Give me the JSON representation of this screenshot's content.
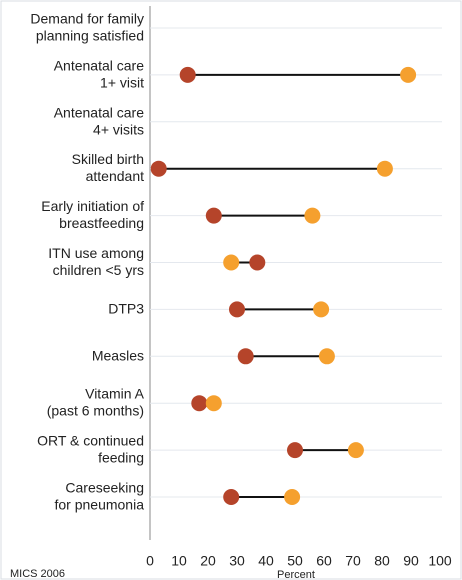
{
  "chart_data": {
    "type": "dumbbell",
    "categories": [
      "Demand for family\nplanning satisfied",
      "Antenatal care\n1+ visit",
      "Antenatal care\n4+ visits",
      "Skilled birth\nattendant",
      "Early initiation of\nbreastfeeding",
      "ITN use among\nchildren <5 yrs",
      "DTP3",
      "Measles",
      "Vitamin A\n(past 6 months)",
      "ORT & continued\nfeeding",
      "Careseeking\nfor pneumonia"
    ],
    "series": [
      {
        "color": "#b5442a",
        "values": [
          null,
          13,
          null,
          3,
          22,
          37,
          30,
          33,
          17,
          50,
          28
        ]
      },
      {
        "color": "#f5a02e",
        "values": [
          null,
          89,
          null,
          81,
          56,
          28,
          59,
          61,
          22,
          71,
          49
        ]
      }
    ],
    "xlim": [
      0,
      100
    ],
    "xticks": [
      0,
      10,
      20,
      30,
      40,
      50,
      60,
      70,
      80,
      90,
      100
    ],
    "x_label": "Percent",
    "note": "MICS 2006",
    "grid": true
  }
}
